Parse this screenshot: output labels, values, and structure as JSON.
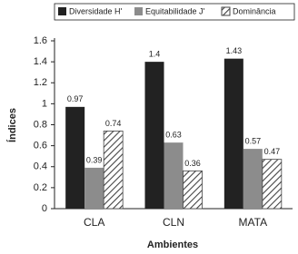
{
  "chart_data": {
    "type": "bar",
    "categories": [
      "CLA",
      "CLN",
      "MATA"
    ],
    "series": [
      {
        "name": "Diversidade H'",
        "color": "#222222",
        "values": [
          0.97,
          1.4,
          1.43
        ]
      },
      {
        "name": "Equitabilidade J'",
        "color": "#8c8c8c",
        "values": [
          0.39,
          0.63,
          0.57
        ]
      },
      {
        "name": "Dominância",
        "color": "#444444",
        "hatch": true,
        "values": [
          0.74,
          0.36,
          0.47
        ]
      }
    ],
    "ylim": [
      0,
      1.6
    ],
    "yticks": [
      0,
      0.2,
      0.4,
      0.6,
      0.8,
      1,
      1.2,
      1.4,
      1.6
    ],
    "y_label": "Índices",
    "x_label": "Ambientes",
    "legend": "top",
    "grid": false
  }
}
